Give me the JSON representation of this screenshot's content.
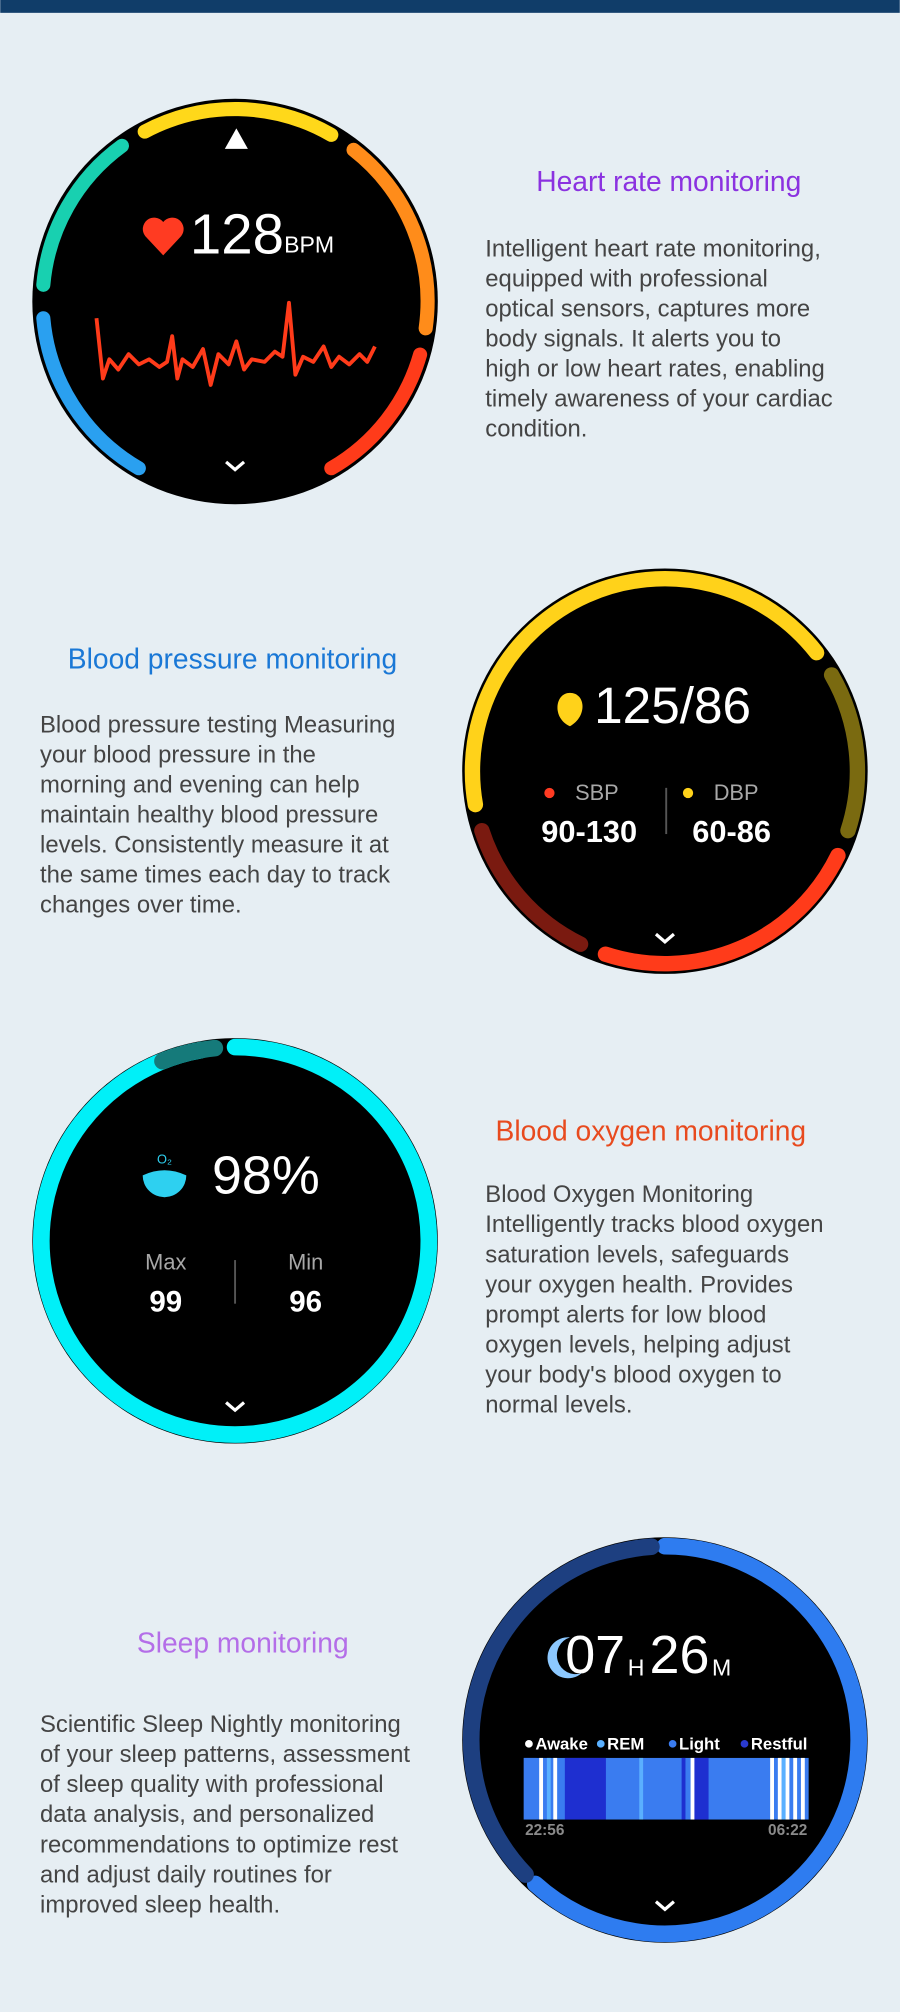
{
  "sections": [
    {
      "title": "Heart rate monitoring",
      "description": [
        "Intelligent heart rate monitoring,",
        "equipped with professional",
        "optical sensors, captures more",
        "body signals. It alerts you to",
        "high or low heart rates, enabling",
        "timely awareness of your cardiac",
        "condition."
      ],
      "watch": {
        "value": "128",
        "unit": "BPM"
      }
    },
    {
      "title": "Blood pressure monitoring",
      "description": [
        "Blood pressure testing Measuring",
        "your blood pressure in the",
        "morning and evening can help",
        "maintain healthy blood pressure",
        "levels. Consistently measure it at",
        "the same times each day to track",
        "changes over time."
      ],
      "watch": {
        "value": "125/86",
        "sbp_label": "SBP",
        "dbp_label": "DBP",
        "sbp_range": "90-130",
        "dbp_range": "60-86"
      }
    },
    {
      "title": "Blood oxygen monitoring",
      "description": [
        "Blood Oxygen Monitoring",
        "Intelligently tracks blood oxygen",
        "saturation levels, safeguards",
        "your oxygen health. Provides",
        "prompt alerts for low blood",
        "oxygen levels, helping adjust",
        "your body's blood oxygen to",
        "normal levels."
      ],
      "watch": {
        "icon_label": "O₂",
        "value": "98%",
        "max_label": "Max",
        "min_label": "Min",
        "max": "99",
        "min": "96"
      }
    },
    {
      "title": "Sleep monitoring",
      "description": [
        "Scientific Sleep Nightly monitoring",
        "of your sleep patterns, assessment",
        "of sleep quality with professional",
        "data analysis, and personalized",
        "recommendations to optimize rest",
        "and adjust daily routines for",
        "improved sleep health."
      ],
      "watch": {
        "hours": "07",
        "hours_unit": "H",
        "minutes": "26",
        "minutes_unit": "M",
        "legend": [
          "Awake",
          "REM",
          "Light",
          "Restful"
        ],
        "start": "22:56",
        "end": "06:22"
      }
    }
  ]
}
